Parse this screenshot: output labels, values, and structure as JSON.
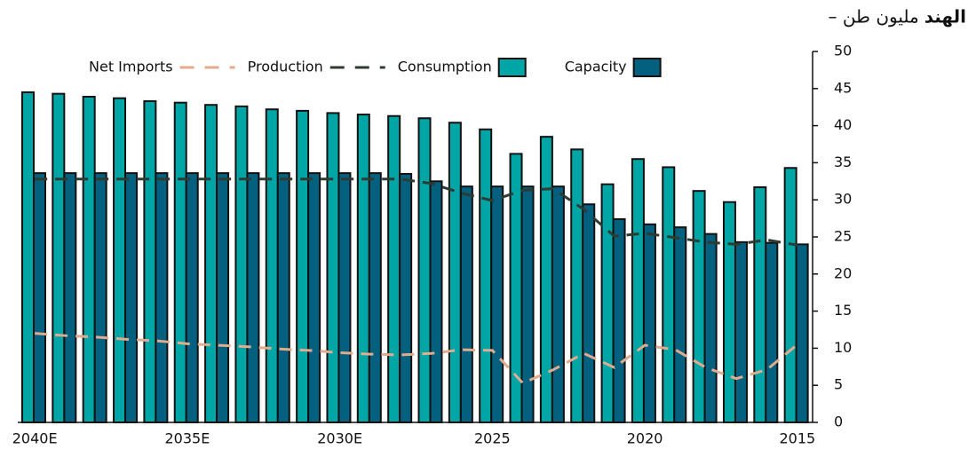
{
  "chart_data": {
    "type": "bar",
    "title": "الهند",
    "subtitle": "– مليون طن",
    "categories": [
      "2040E",
      null,
      null,
      null,
      null,
      "2035E",
      null,
      null,
      null,
      null,
      "2030E",
      null,
      null,
      null,
      null,
      "2025",
      null,
      null,
      null,
      null,
      "2020",
      null,
      null,
      null,
      null,
      "2015"
    ],
    "series": [
      {
        "name": "Consumption",
        "kind": "bar",
        "color": "#00a6a6",
        "values": [
          44.5,
          44.3,
          43.9,
          43.7,
          43.3,
          43.1,
          42.8,
          42.6,
          42.2,
          42.0,
          41.7,
          41.5,
          41.3,
          41.0,
          40.4,
          39.5,
          36.2,
          38.5,
          36.8,
          32.1,
          35.5,
          34.4,
          31.2,
          29.7,
          31.7,
          34.3
        ]
      },
      {
        "name": "Capacity",
        "kind": "bar",
        "color": "#03607f",
        "values": [
          33.6,
          33.6,
          33.6,
          33.6,
          33.6,
          33.6,
          33.6,
          33.6,
          33.6,
          33.6,
          33.6,
          33.6,
          33.5,
          32.5,
          31.8,
          31.8,
          31.8,
          31.8,
          29.4,
          27.4,
          26.7,
          26.3,
          25.4,
          24.3,
          24.2,
          24.0
        ]
      },
      {
        "name": "Net Imports",
        "kind": "line",
        "color": "#e0ab8e",
        "values": [
          12.0,
          11.7,
          11.5,
          11.2,
          11.0,
          10.6,
          10.4,
          10.2,
          9.9,
          9.7,
          9.4,
          9.2,
          9.1,
          9.3,
          9.8,
          9.7,
          5.3,
          7.1,
          9.3,
          7.4,
          10.4,
          9.8,
          7.4,
          5.9,
          7.1,
          10.5
        ]
      },
      {
        "name": "Production",
        "kind": "line",
        "color": "#2d3b33",
        "values": [
          32.8,
          32.8,
          32.8,
          32.8,
          32.8,
          32.8,
          32.8,
          32.8,
          32.8,
          32.8,
          32.8,
          32.8,
          32.8,
          32.2,
          30.9,
          29.9,
          31.3,
          31.5,
          28.7,
          25.1,
          25.5,
          24.9,
          24.3,
          24.0,
          24.6,
          23.9
        ]
      }
    ],
    "legend_order": [
      2,
      3,
      0,
      1
    ],
    "ylim": [
      0,
      50
    ],
    "yticks": [
      0,
      5,
      10,
      15,
      20,
      25,
      30,
      35,
      40,
      45,
      50
    ],
    "y_axis_side": "right",
    "grid": false
  }
}
